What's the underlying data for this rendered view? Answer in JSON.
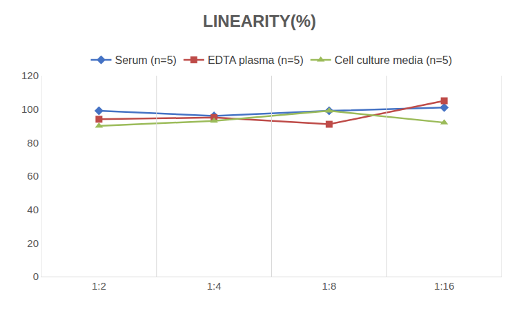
{
  "chart_data": {
    "type": "line",
    "title": "LINEARITY(%)",
    "categories": [
      "1:2",
      "1:4",
      "1:8",
      "1:16"
    ],
    "series": [
      {
        "name": "Serum (n=5)",
        "color": "#4472c4",
        "marker": "diamond",
        "values": [
          99,
          96,
          99,
          101
        ]
      },
      {
        "name": "EDTA plasma (n=5)",
        "color": "#be4b48",
        "marker": "square",
        "values": [
          94,
          95,
          91,
          105
        ]
      },
      {
        "name": "Cell culture media (n=5)",
        "color": "#9bbb59",
        "marker": "triangle-up",
        "values": [
          90,
          93,
          99,
          92
        ]
      }
    ],
    "ylim": [
      0,
      120
    ],
    "yticks": [
      0,
      20,
      40,
      60,
      80,
      100,
      120
    ],
    "grid": true,
    "legend": "top"
  }
}
